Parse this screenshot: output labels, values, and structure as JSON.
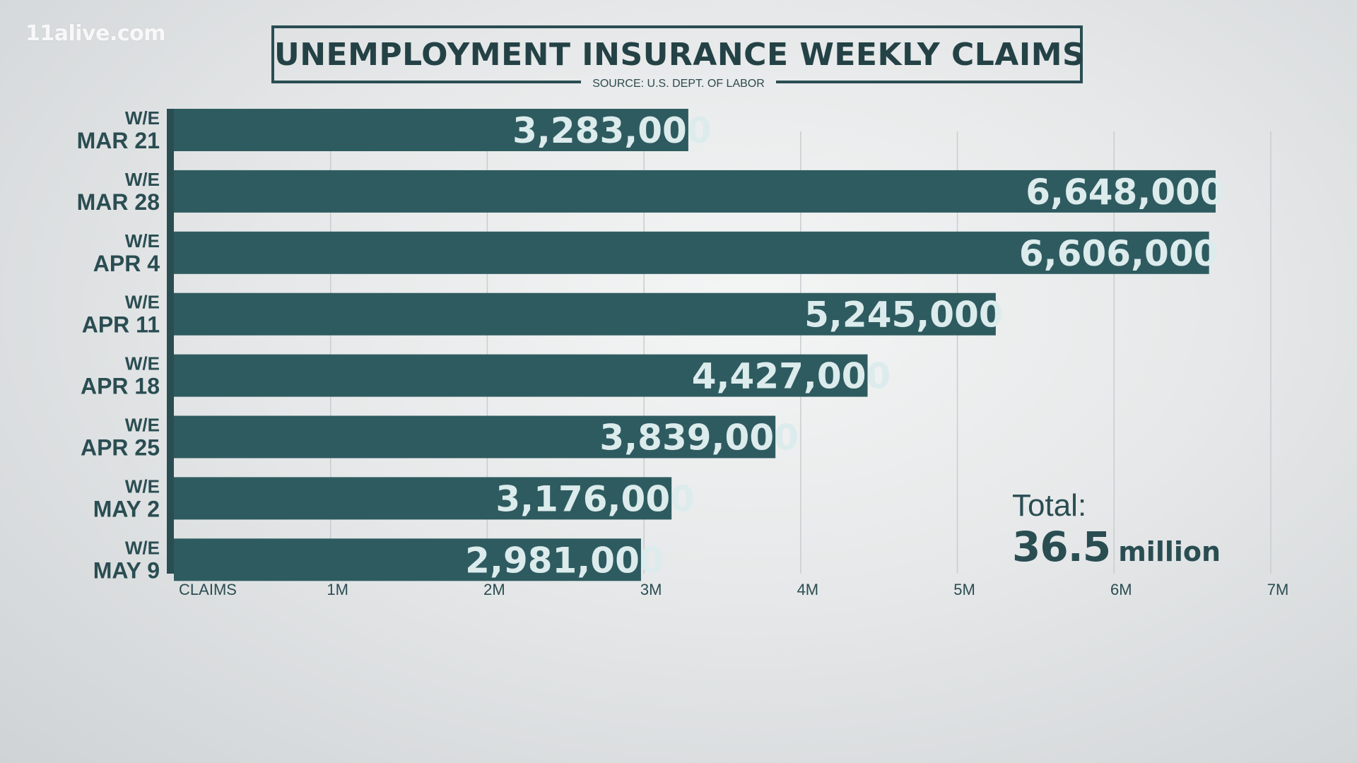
{
  "watermark": "11alive.com",
  "title": "UNEMPLOYMENT INSURANCE WEEKLY CLAIMS",
  "source": "SOURCE: U.S. DEPT. OF LABOR",
  "total": {
    "label": "Total:",
    "value": "36.5",
    "unit": "million"
  },
  "colors": {
    "bar": "#2e5b60",
    "bar_label": "#dcebec",
    "axis": "#2a4d52",
    "gridline": "#c8cdcf",
    "text": "#2a4d52"
  },
  "chart_data": {
    "type": "bar",
    "orientation": "horizontal",
    "categories": [
      [
        "W/E",
        "MAR 21"
      ],
      [
        "W/E",
        "MAR 28"
      ],
      [
        "W/E",
        "APR 4"
      ],
      [
        "W/E",
        "APR 11"
      ],
      [
        "W/E",
        "APR 18"
      ],
      [
        "W/E",
        "APR 25"
      ],
      [
        "W/E",
        "MAY 2"
      ],
      [
        "W/E",
        "MAY 9"
      ]
    ],
    "values": [
      3283000,
      6648000,
      6606000,
      5245000,
      4427000,
      3839000,
      3176000,
      2981000
    ],
    "value_labels": [
      "3,283,000",
      "6,648,000",
      "6,606,000",
      "5,245,000",
      "4,427,000",
      "3,839,000",
      "3,176,000",
      "2,981,000"
    ],
    "x_axis_title": "CLAIMS",
    "x_ticks": [
      1000000,
      2000000,
      3000000,
      4000000,
      5000000,
      6000000,
      7000000
    ],
    "x_tick_labels": [
      "1M",
      "2M",
      "3M",
      "4M",
      "5M",
      "6M",
      "7M"
    ],
    "xlim": [
      0,
      7000000
    ],
    "grid": true,
    "legend": "none"
  }
}
